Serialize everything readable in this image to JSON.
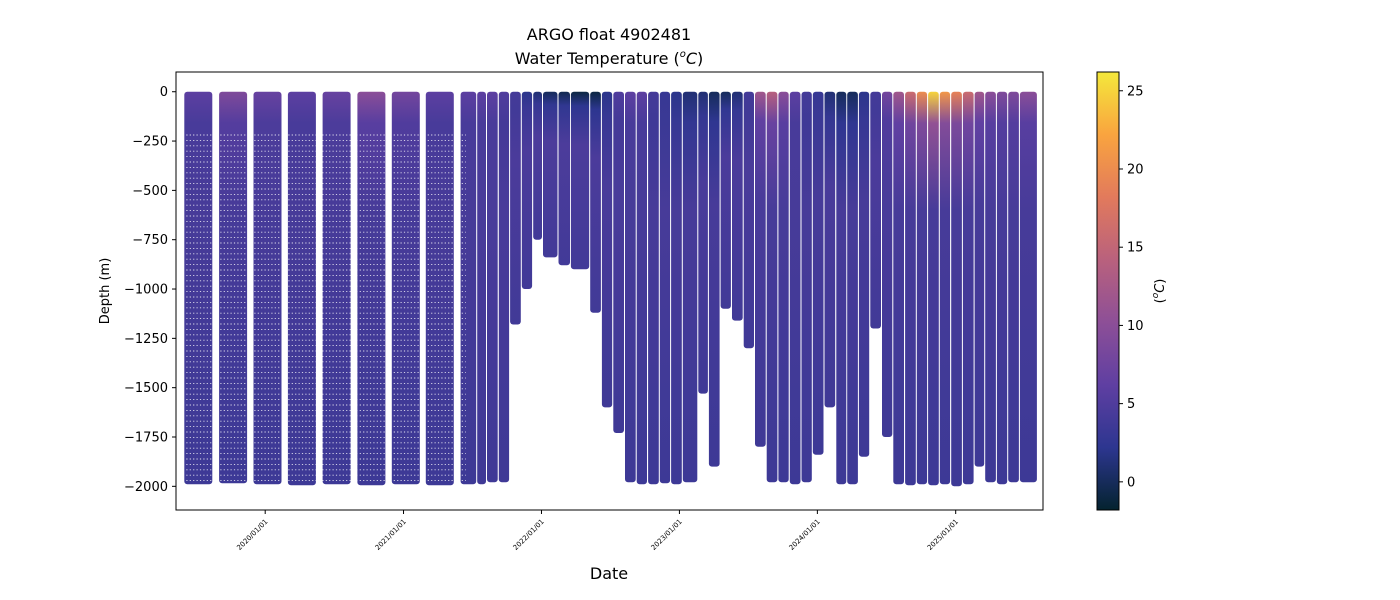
{
  "chart_data": {
    "type": "scatter",
    "title_line1": "ARGO float 4902481",
    "title_line2_prefix": "Water Temperature (",
    "title_line2_sup": "o",
    "title_line2_unit": "C",
    "title_line2_suffix": ")",
    "xlabel": "Date",
    "ylabel": "Depth (m)",
    "x_tick_labels": [
      "2020/01/01",
      "2021/01/01",
      "2022/01/01",
      "2023/01/01",
      "2024/01/01",
      "2025/01/01"
    ],
    "xlim": [
      "2019-05-10",
      "2025-08-20"
    ],
    "ylim": [
      -2120,
      100
    ],
    "y_ticks": [
      0,
      -250,
      -500,
      -750,
      -1000,
      -1250,
      -1500,
      -1750,
      -2000
    ],
    "y_tick_labels": [
      "0",
      "−250",
      "−500",
      "−750",
      "−1000",
      "−1250",
      "−1500",
      "−1750",
      "−2000"
    ],
    "grid": false,
    "colorbar": {
      "label_prefix": "(",
      "label_sup": "o",
      "label_unit": "C",
      "label_suffix": ")",
      "range": [
        -1.8,
        26.2
      ],
      "ticks": [
        0,
        5,
        10,
        15,
        20,
        25
      ],
      "tick_labels": [
        "0",
        "5",
        "10",
        "15",
        "20",
        "25"
      ],
      "colormap": "thermal",
      "colors": [
        "#04232f",
        "#2d3690",
        "#5f3fa2",
        "#8d4f97",
        "#b9617d",
        "#e27a5c",
        "#f9a43f",
        "#f4e83b"
      ]
    },
    "profiles": [
      {
        "date": "2019-06-01",
        "max_depth": -1990,
        "deep_temp": 3.5,
        "surface_temp": 6
      },
      {
        "date": "2019-09-01",
        "max_depth": -1985,
        "deep_temp": 3.5,
        "surface_temp": 9
      },
      {
        "date": "2019-12-01",
        "max_depth": -1990,
        "deep_temp": 3.5,
        "surface_temp": 7
      },
      {
        "date": "2020-03-01",
        "max_depth": -1995,
        "deep_temp": 3.5,
        "surface_temp": 6
      },
      {
        "date": "2020-06-01",
        "max_depth": -1990,
        "deep_temp": 3.5,
        "surface_temp": 7
      },
      {
        "date": "2020-09-01",
        "max_depth": -1995,
        "deep_temp": 3.5,
        "surface_temp": 10
      },
      {
        "date": "2020-12-01",
        "max_depth": -1990,
        "deep_temp": 3.5,
        "surface_temp": 8
      },
      {
        "date": "2021-03-01",
        "max_depth": -1995,
        "deep_temp": 3.5,
        "surface_temp": 6
      },
      {
        "date": "2021-06-01",
        "max_depth": -1990,
        "deep_temp": 3.5,
        "surface_temp": 6
      },
      {
        "date": "2021-07-15",
        "max_depth": -1990,
        "deep_temp": 3.6,
        "surface_temp": 6
      },
      {
        "date": "2021-08-10",
        "max_depth": -1980,
        "deep_temp": 3.6,
        "surface_temp": 6
      },
      {
        "date": "2021-09-10",
        "max_depth": -1980,
        "deep_temp": 3.6,
        "surface_temp": 5
      },
      {
        "date": "2021-10-10",
        "max_depth": -1180,
        "deep_temp": 3.8,
        "surface_temp": 4
      },
      {
        "date": "2021-11-10",
        "max_depth": -1000,
        "deep_temp": 3.8,
        "surface_temp": 2
      },
      {
        "date": "2021-12-10",
        "max_depth": -750,
        "deep_temp": 3.9,
        "surface_temp": 1
      },
      {
        "date": "2022-01-05",
        "max_depth": -840,
        "deep_temp": 3.9,
        "surface_temp": 0
      },
      {
        "date": "2022-02-15",
        "max_depth": -880,
        "deep_temp": 3.9,
        "surface_temp": -0.5
      },
      {
        "date": "2022-03-20",
        "max_depth": -900,
        "deep_temp": 3.9,
        "surface_temp": -1
      },
      {
        "date": "2022-05-10",
        "max_depth": -1120,
        "deep_temp": 3.8,
        "surface_temp": -1
      },
      {
        "date": "2022-06-10",
        "max_depth": -1600,
        "deep_temp": 3.6,
        "surface_temp": 2
      },
      {
        "date": "2022-07-10",
        "max_depth": -1730,
        "deep_temp": 3.6,
        "surface_temp": 5
      },
      {
        "date": "2022-08-10",
        "max_depth": -1980,
        "deep_temp": 3.5,
        "surface_temp": 6
      },
      {
        "date": "2022-09-10",
        "max_depth": -1990,
        "deep_temp": 3.5,
        "surface_temp": 6
      },
      {
        "date": "2022-10-10",
        "max_depth": -1990,
        "deep_temp": 3.5,
        "surface_temp": 4
      },
      {
        "date": "2022-11-10",
        "max_depth": -1985,
        "deep_temp": 3.5,
        "surface_temp": 3
      },
      {
        "date": "2022-12-10",
        "max_depth": -1990,
        "deep_temp": 3.5,
        "surface_temp": 2
      },
      {
        "date": "2023-01-10",
        "max_depth": -1980,
        "deep_temp": 3.5,
        "surface_temp": 1
      },
      {
        "date": "2023-02-20",
        "max_depth": -1530,
        "deep_temp": 3.6,
        "surface_temp": 1
      },
      {
        "date": "2023-03-20",
        "max_depth": -1900,
        "deep_temp": 3.5,
        "surface_temp": 0
      },
      {
        "date": "2023-04-20",
        "max_depth": -1100,
        "deep_temp": 3.8,
        "surface_temp": 0
      },
      {
        "date": "2023-05-20",
        "max_depth": -1160,
        "deep_temp": 3.8,
        "surface_temp": 1
      },
      {
        "date": "2023-06-20",
        "max_depth": -1300,
        "deep_temp": 3.7,
        "surface_temp": 4
      },
      {
        "date": "2023-07-20",
        "max_depth": -1800,
        "deep_temp": 3.6,
        "surface_temp": 12
      },
      {
        "date": "2023-08-20",
        "max_depth": -1980,
        "deep_temp": 3.5,
        "surface_temp": 14
      },
      {
        "date": "2023-09-20",
        "max_depth": -1980,
        "deep_temp": 3.5,
        "surface_temp": 10
      },
      {
        "date": "2023-10-20",
        "max_depth": -1990,
        "deep_temp": 3.5,
        "surface_temp": 6
      },
      {
        "date": "2023-11-20",
        "max_depth": -1980,
        "deep_temp": 3.5,
        "surface_temp": 4
      },
      {
        "date": "2023-12-20",
        "max_depth": -1840,
        "deep_temp": 3.5,
        "surface_temp": 3
      },
      {
        "date": "2024-01-20",
        "max_depth": -1600,
        "deep_temp": 3.6,
        "surface_temp": 1
      },
      {
        "date": "2024-02-20",
        "max_depth": -1990,
        "deep_temp": 3.5,
        "surface_temp": 0
      },
      {
        "date": "2024-03-20",
        "max_depth": -1990,
        "deep_temp": 3.5,
        "surface_temp": 0
      },
      {
        "date": "2024-04-20",
        "max_depth": -1850,
        "deep_temp": 3.5,
        "surface_temp": 2
      },
      {
        "date": "2024-05-20",
        "max_depth": -1200,
        "deep_temp": 3.8,
        "surface_temp": 4
      },
      {
        "date": "2024-06-20",
        "max_depth": -1750,
        "deep_temp": 3.6,
        "surface_temp": 8
      },
      {
        "date": "2024-07-20",
        "max_depth": -1990,
        "deep_temp": 3.5,
        "surface_temp": 12
      },
      {
        "date": "2024-08-20",
        "max_depth": -1995,
        "deep_temp": 3.5,
        "surface_temp": 16
      },
      {
        "date": "2024-09-20",
        "max_depth": -1990,
        "deep_temp": 3.5,
        "surface_temp": 20
      },
      {
        "date": "2024-10-20",
        "max_depth": -1995,
        "deep_temp": 3.5,
        "surface_temp": 25
      },
      {
        "date": "2024-11-20",
        "max_depth": -1990,
        "deep_temp": 3.5,
        "surface_temp": 21
      },
      {
        "date": "2024-12-20",
        "max_depth": -2000,
        "deep_temp": 3.5,
        "surface_temp": 19
      },
      {
        "date": "2025-01-20",
        "max_depth": -1990,
        "deep_temp": 3.5,
        "surface_temp": 16
      },
      {
        "date": "2025-02-20",
        "max_depth": -1900,
        "deep_temp": 3.5,
        "surface_temp": 12
      },
      {
        "date": "2025-03-20",
        "max_depth": -1980,
        "deep_temp": 3.5,
        "surface_temp": 10
      },
      {
        "date": "2025-04-20",
        "max_depth": -1990,
        "deep_temp": 3.5,
        "surface_temp": 9
      },
      {
        "date": "2025-05-20",
        "max_depth": -1980,
        "deep_temp": 3.5,
        "surface_temp": 9
      },
      {
        "date": "2025-06-20",
        "max_depth": -1980,
        "deep_temp": 3.5,
        "surface_temp": 10
      }
    ]
  }
}
